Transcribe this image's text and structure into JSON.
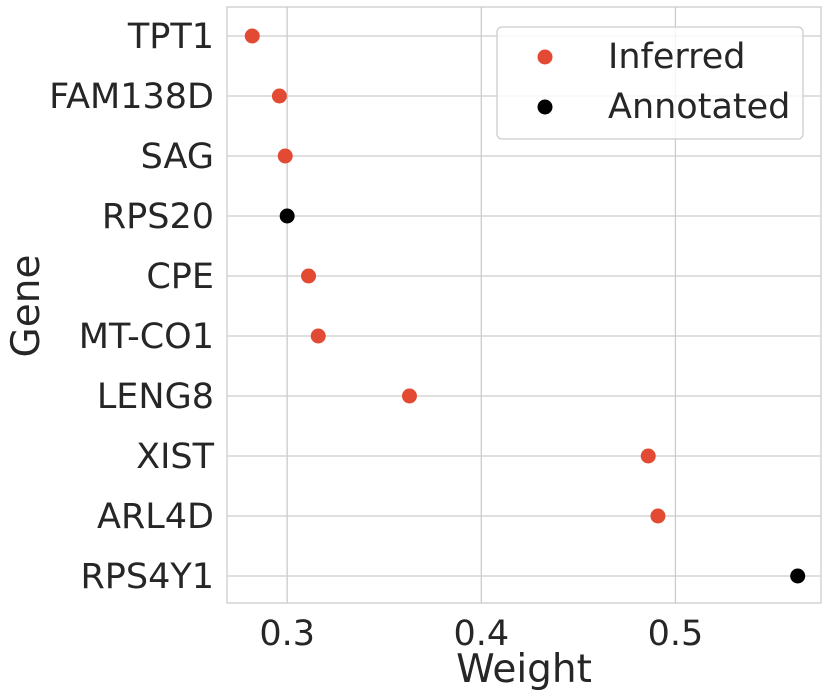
{
  "chart_data": {
    "type": "scatter",
    "title": "",
    "xlabel": "Weight",
    "ylabel": "Gene",
    "xlim": [
      0.269,
      0.575
    ],
    "xticks": [
      "0.3",
      "0.4",
      "0.5"
    ],
    "xtick_values": [
      0.3,
      0.4,
      0.5
    ],
    "categories": [
      "TPT1",
      "FAM138D",
      "SAG",
      "RPS20",
      "CPE",
      "MT-CO1",
      "LENG8",
      "XIST",
      "ARL4D",
      "RPS4Y1"
    ],
    "grid": true,
    "legend_placement": "top-right",
    "series": [
      {
        "name": "Inferred",
        "color": "#e24a33",
        "points": [
          {
            "gene": "TPT1",
            "weight": 0.282
          },
          {
            "gene": "FAM138D",
            "weight": 0.296
          },
          {
            "gene": "SAG",
            "weight": 0.299
          },
          {
            "gene": "CPE",
            "weight": 0.311
          },
          {
            "gene": "MT-CO1",
            "weight": 0.316
          },
          {
            "gene": "LENG8",
            "weight": 0.363
          },
          {
            "gene": "XIST",
            "weight": 0.486
          },
          {
            "gene": "ARL4D",
            "weight": 0.491
          }
        ]
      },
      {
        "name": "Annotated",
        "color": "#000000",
        "points": [
          {
            "gene": "RPS20",
            "weight": 0.3
          },
          {
            "gene": "RPS4Y1",
            "weight": 0.563
          }
        ]
      }
    ]
  }
}
